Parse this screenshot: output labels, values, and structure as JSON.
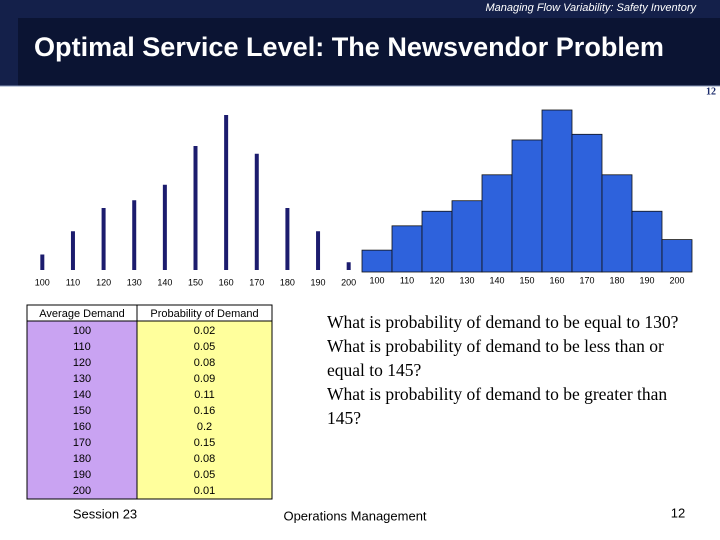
{
  "header": "Managing Flow Variability:  Safety Inventory",
  "title": "Optimal Service Level:  The Newsvendor Problem",
  "slide_number": "12",
  "chart_data": [
    {
      "type": "stem",
      "color": "#1c1c6e",
      "categories": [
        "100",
        "110",
        "120",
        "130",
        "140",
        "150",
        "160",
        "170",
        "180",
        "190",
        "200"
      ],
      "values": [
        0.02,
        0.05,
        0.08,
        0.09,
        0.11,
        0.16,
        0.2,
        0.15,
        0.08,
        0.05,
        0.01
      ],
      "ylim": [
        0,
        0.2
      ]
    },
    {
      "type": "bar",
      "color": "#2e62dc",
      "categories": [
        "100",
        "110",
        "120",
        "130",
        "140",
        "150",
        "160",
        "170",
        "180",
        "190",
        "200"
      ],
      "values": [
        0.027,
        0.057,
        0.075,
        0.088,
        0.12,
        0.163,
        0.2,
        0.17,
        0.12,
        0.075,
        0.04
      ],
      "ylim": [
        0,
        0.2
      ]
    }
  ],
  "table": {
    "columns": [
      "Average Demand",
      "Probability of Demand"
    ],
    "rows": [
      [
        100,
        0.02
      ],
      [
        110,
        0.05
      ],
      [
        120,
        0.08
      ],
      [
        130,
        0.09
      ],
      [
        140,
        0.11
      ],
      [
        150,
        0.16
      ],
      [
        160,
        0.2
      ],
      [
        170,
        0.15
      ],
      [
        180,
        0.08
      ],
      [
        190,
        0.05
      ],
      [
        200,
        0.01
      ]
    ]
  },
  "questions": [
    "What is probability of demand to be equal to 130?",
    "What is probability of demand to be less than or equal to 145?",
    "What is probability of demand to be greater than  145?"
  ],
  "footer": {
    "left": "Session 23",
    "center": "Operations Management",
    "right": "12"
  }
}
